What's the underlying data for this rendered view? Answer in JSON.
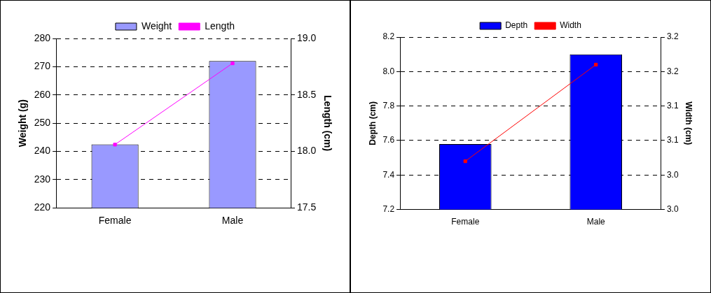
{
  "chart_data": [
    {
      "type": "bar",
      "categories": [
        "Female",
        "Male"
      ],
      "ylabel": "Weight (g)",
      "y2label": "Length (cm)",
      "ylim": [
        220,
        280
      ],
      "yticks": [
        220,
        230,
        240,
        250,
        260,
        270,
        280
      ],
      "y2lim": [
        17.5,
        19.0
      ],
      "y2ticks": [
        {
          "value": 17.5,
          "label": "17.5"
        },
        {
          "value": 18.0,
          "label": "18.0"
        },
        {
          "value": 18.5,
          "label": "18.5"
        },
        {
          "value": 19.0,
          "label": "19.0"
        }
      ],
      "grid": "y",
      "legend": "top",
      "marker": "square",
      "series": [
        {
          "name": "Weight",
          "color": "#9999ff",
          "values": [
            242.5,
            272
          ]
        },
        {
          "name": "Length",
          "type": "line",
          "axis": "y2",
          "color": "#ff00ff",
          "values": [
            18.06,
            18.78
          ]
        }
      ]
    },
    {
      "type": "bar",
      "categories": [
        "Female",
        "Male"
      ],
      "ylabel": "Depth (cm)",
      "y2label": "Width (cm)",
      "ylim": [
        7.2,
        8.2
      ],
      "yticks": [
        {
          "value": 7.2,
          "label": "7.2"
        },
        7.4,
        7.6,
        7.8,
        {
          "value": 8.0,
          "label": "8.0"
        },
        8.2
      ],
      "y2lim": [
        2.95,
        3.2
      ],
      "y2ticks": [
        {
          "value": 2.95,
          "label": "3.0"
        },
        {
          "value": 3.0,
          "label": "3.0"
        },
        {
          "value": 3.05,
          "label": "3.1"
        },
        {
          "value": 3.1,
          "label": "3.1"
        },
        {
          "value": 3.15,
          "label": "3.2"
        },
        {
          "value": 3.2,
          "label": "3.2"
        }
      ],
      "grid": "y",
      "legend": "top",
      "marker": "square",
      "series": [
        {
          "name": "Depth",
          "color": "#0000ff",
          "values": [
            7.58,
            8.1
          ]
        },
        {
          "name": "Width",
          "type": "line",
          "axis": "y2",
          "color": "#ff0000",
          "values": [
            3.02,
            3.16
          ]
        }
      ]
    }
  ]
}
